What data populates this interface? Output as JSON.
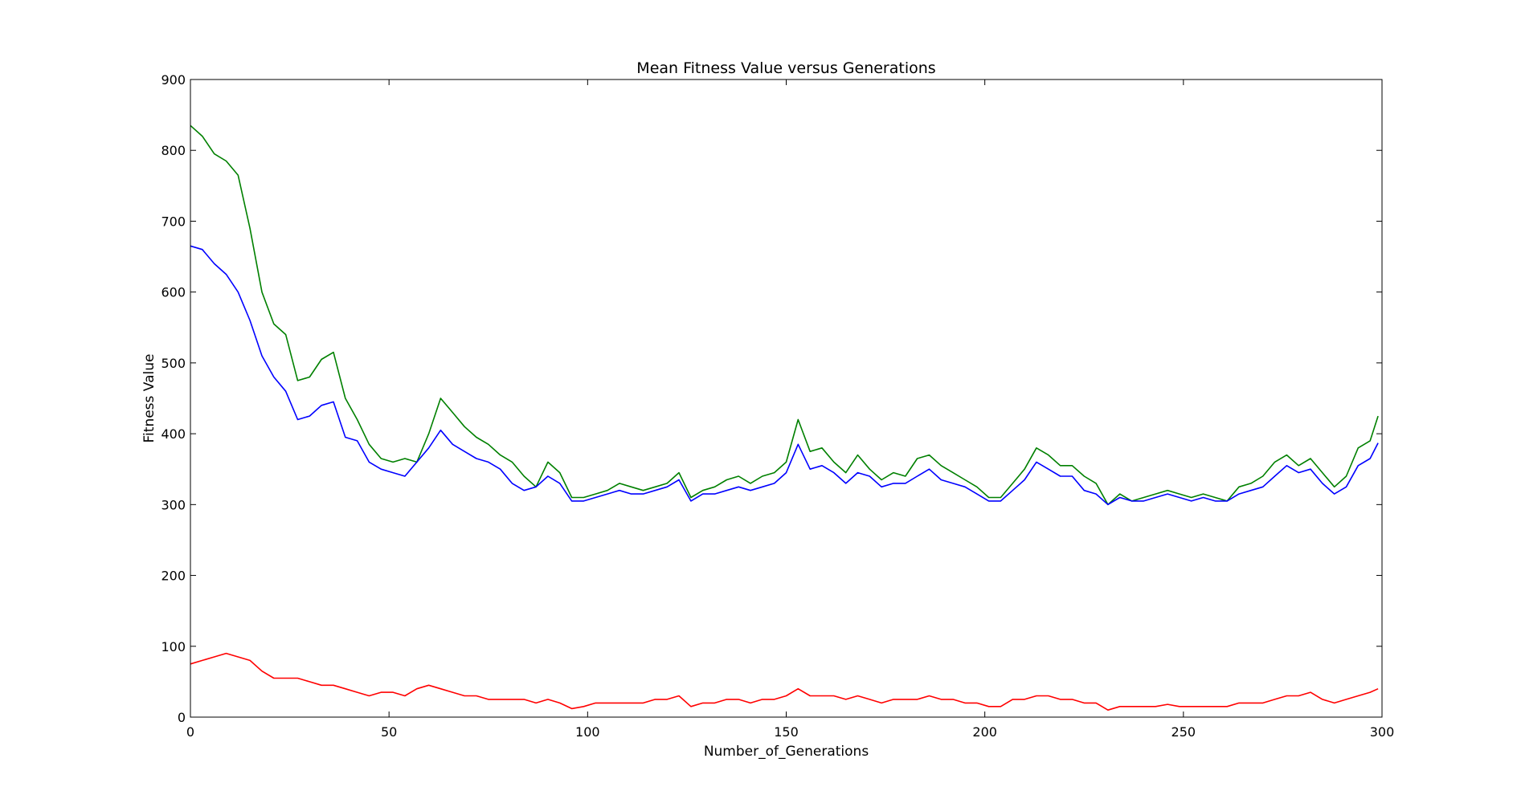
{
  "chart_data": {
    "type": "line",
    "title": "Mean Fitness Value versus Generations",
    "xlabel": "Number_of_Generations",
    "ylabel": "Fitness Value",
    "xlim": [
      0,
      300
    ],
    "ylim": [
      0,
      900
    ],
    "grid": false,
    "xticks": [
      0,
      50,
      100,
      150,
      200,
      250,
      300
    ],
    "yticks": [
      0,
      100,
      200,
      300,
      400,
      500,
      600,
      700,
      800,
      900
    ],
    "x": [
      0,
      3,
      6,
      9,
      12,
      15,
      18,
      21,
      24,
      27,
      30,
      33,
      36,
      39,
      42,
      45,
      48,
      51,
      54,
      57,
      60,
      63,
      66,
      69,
      72,
      75,
      78,
      81,
      84,
      87,
      90,
      93,
      96,
      99,
      102,
      105,
      108,
      111,
      114,
      117,
      120,
      123,
      126,
      129,
      132,
      135,
      138,
      141,
      144,
      147,
      150,
      153,
      156,
      159,
      162,
      165,
      168,
      171,
      174,
      177,
      180,
      183,
      186,
      189,
      192,
      195,
      198,
      201,
      204,
      207,
      210,
      213,
      216,
      219,
      222,
      225,
      228,
      231,
      234,
      237,
      240,
      243,
      246,
      249,
      252,
      255,
      258,
      261,
      264,
      267,
      270,
      273,
      276,
      279,
      282,
      285,
      288,
      291,
      294,
      297,
      299
    ],
    "series": [
      {
        "color": "#008000",
        "values": [
          835,
          820,
          795,
          785,
          765,
          690,
          600,
          555,
          540,
          475,
          480,
          505,
          515,
          450,
          420,
          385,
          365,
          360,
          365,
          360,
          400,
          450,
          430,
          410,
          395,
          385,
          370,
          360,
          340,
          325,
          360,
          345,
          310,
          310,
          315,
          320,
          330,
          325,
          320,
          325,
          330,
          345,
          310,
          320,
          325,
          335,
          340,
          330,
          340,
          345,
          360,
          420,
          375,
          380,
          360,
          345,
          370,
          350,
          335,
          345,
          340,
          365,
          370,
          355,
          345,
          335,
          325,
          310,
          310,
          330,
          350,
          380,
          370,
          355,
          355,
          340,
          330,
          300,
          315,
          305,
          310,
          315,
          320,
          315,
          310,
          315,
          310,
          305,
          325,
          330,
          340,
          360,
          370,
          355,
          365,
          345,
          325,
          340,
          380,
          390,
          425
        ],
        "label_values": [
          0
        ]
      },
      {
        "color": "#0000ff",
        "values": [
          665,
          660,
          640,
          625,
          600,
          560,
          510,
          480,
          460,
          420,
          425,
          440,
          445,
          395,
          390,
          360,
          350,
          345,
          340,
          360,
          380,
          405,
          385,
          375,
          365,
          360,
          350,
          330,
          320,
          325,
          340,
          330,
          305,
          305,
          310,
          315,
          320,
          315,
          315,
          320,
          325,
          335,
          305,
          315,
          315,
          320,
          325,
          320,
          325,
          330,
          345,
          385,
          350,
          355,
          345,
          330,
          345,
          340,
          325,
          330,
          330,
          340,
          350,
          335,
          330,
          325,
          315,
          305,
          305,
          320,
          335,
          360,
          350,
          340,
          340,
          320,
          315,
          300,
          310,
          305,
          305,
          310,
          315,
          310,
          305,
          310,
          305,
          305,
          315,
          320,
          325,
          340,
          355,
          345,
          350,
          330,
          315,
          325,
          355,
          365,
          387
        ]
      },
      {
        "color": "#ff0000",
        "values": [
          75,
          80,
          85,
          90,
          85,
          80,
          65,
          55,
          55,
          55,
          50,
          45,
          45,
          40,
          35,
          30,
          35,
          35,
          30,
          40,
          45,
          40,
          35,
          30,
          30,
          25,
          25,
          25,
          25,
          20,
          25,
          20,
          12,
          15,
          20,
          20,
          20,
          20,
          20,
          25,
          25,
          30,
          15,
          20,
          20,
          25,
          25,
          20,
          25,
          25,
          30,
          40,
          30,
          30,
          30,
          25,
          30,
          25,
          20,
          25,
          25,
          25,
          30,
          25,
          25,
          20,
          20,
          15,
          15,
          25,
          25,
          30,
          30,
          25,
          25,
          20,
          20,
          10,
          15,
          15,
          15,
          15,
          18,
          15,
          15,
          15,
          15,
          15,
          20,
          20,
          20,
          25,
          30,
          30,
          35,
          25,
          20,
          25,
          30,
          35,
          40
        ]
      }
    ]
  }
}
